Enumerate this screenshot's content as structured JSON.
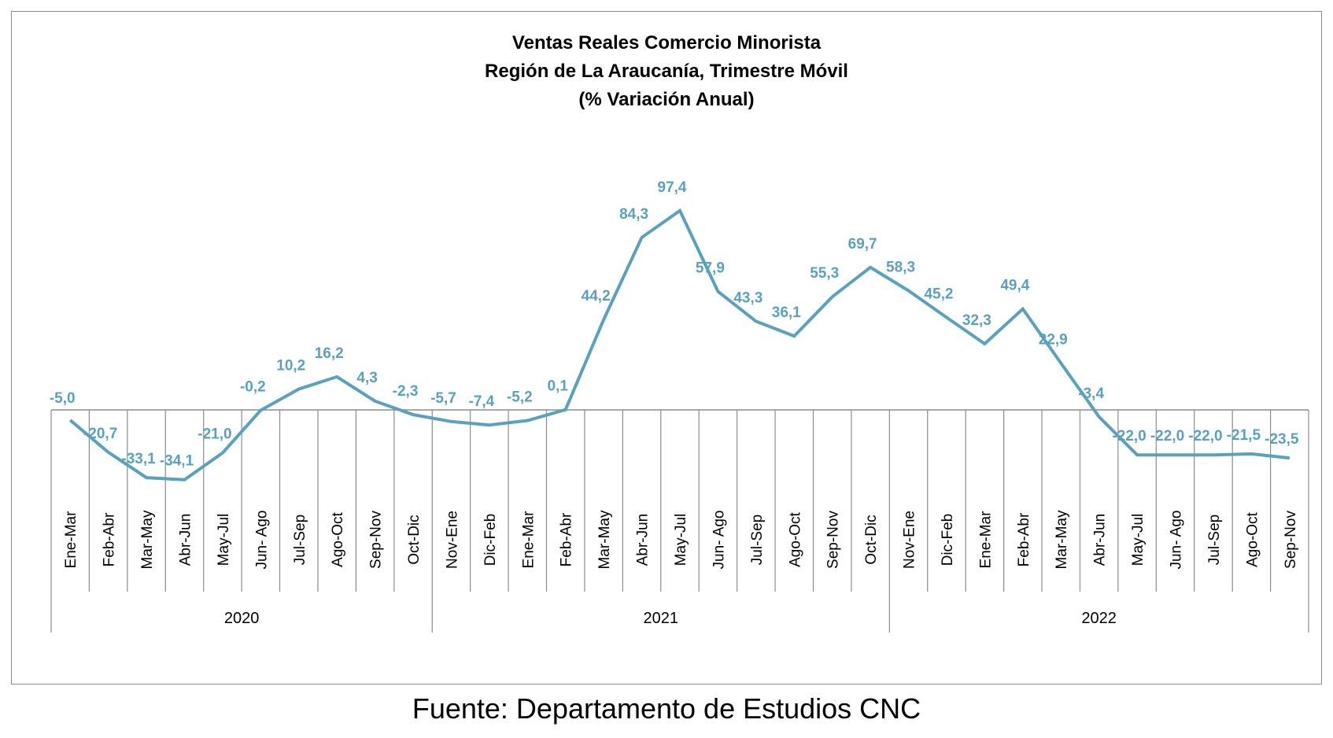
{
  "chart_data": {
    "type": "line",
    "title": [
      "Ventas Reales Comercio Minorista",
      "Región de La Araucanía, Trimestre Móvil",
      "(% Variación Anual)"
    ],
    "categories": [
      "Ene-Mar",
      "Feb-Abr",
      "Mar-May",
      "Abr-Jun",
      "May-Jul",
      "Jun- Ago",
      "Jul-Sep",
      "Ago-Oct",
      "Sep-Nov",
      "Oct-Dic",
      "Nov-Ene",
      "Dic-Feb",
      "Ene-Mar",
      "Feb-Abr",
      "Mar-May",
      "Abr-Jun",
      "May-Jul",
      "Jun- Ago",
      "Jul-Sep",
      "Ago-Oct",
      "Sep-Nov",
      "Oct-Dic",
      "Nov-Ene",
      "Dic-Feb",
      "Ene-Mar",
      "Feb-Abr",
      "Mar-May",
      "Abr-Jun",
      "May-Jul",
      "Jun- Ago",
      "Jul-Sep",
      "Ago-Oct",
      "Sep-Nov"
    ],
    "groups": [
      {
        "label": "2020",
        "start": 0,
        "end": 9
      },
      {
        "label": "2021",
        "start": 10,
        "end": 21
      },
      {
        "label": "2022",
        "start": 22,
        "end": 32
      }
    ],
    "values": [
      -5.0,
      -20.7,
      -33.1,
      -34.1,
      -21.0,
      -0.2,
      10.2,
      16.2,
      4.3,
      -2.3,
      -5.7,
      -7.4,
      -5.2,
      0.1,
      44.2,
      84.3,
      97.4,
      57.9,
      43.3,
      36.1,
      55.3,
      69.7,
      58.3,
      45.2,
      32.3,
      49.4,
      22.9,
      -3.4,
      -22.0,
      -22.0,
      -22.0,
      -21.5,
      -23.5
    ],
    "data_labels": [
      "-5,0",
      "-20,7",
      "-33,1",
      "-34,1",
      "-21,0",
      "-0,2",
      "10,2",
      "16,2",
      "4,3",
      "-2,3",
      "-5,7",
      "-7,4",
      "-5,2",
      "0,1",
      "44,2",
      "84,3",
      "97,4",
      "57,9",
      "43,3",
      "36,1",
      "55,3",
      "69,7",
      "58,3",
      "45,2",
      "32,3",
      "49,4",
      "22,9",
      "-3,4",
      "-22,0",
      "-22,0",
      "-22,0",
      "-21,5",
      "-23,5"
    ],
    "line_color": "#5aa1bf",
    "grid": false,
    "legend": "none"
  },
  "source_note": "Fuente: Departamento de Estudios CNC"
}
